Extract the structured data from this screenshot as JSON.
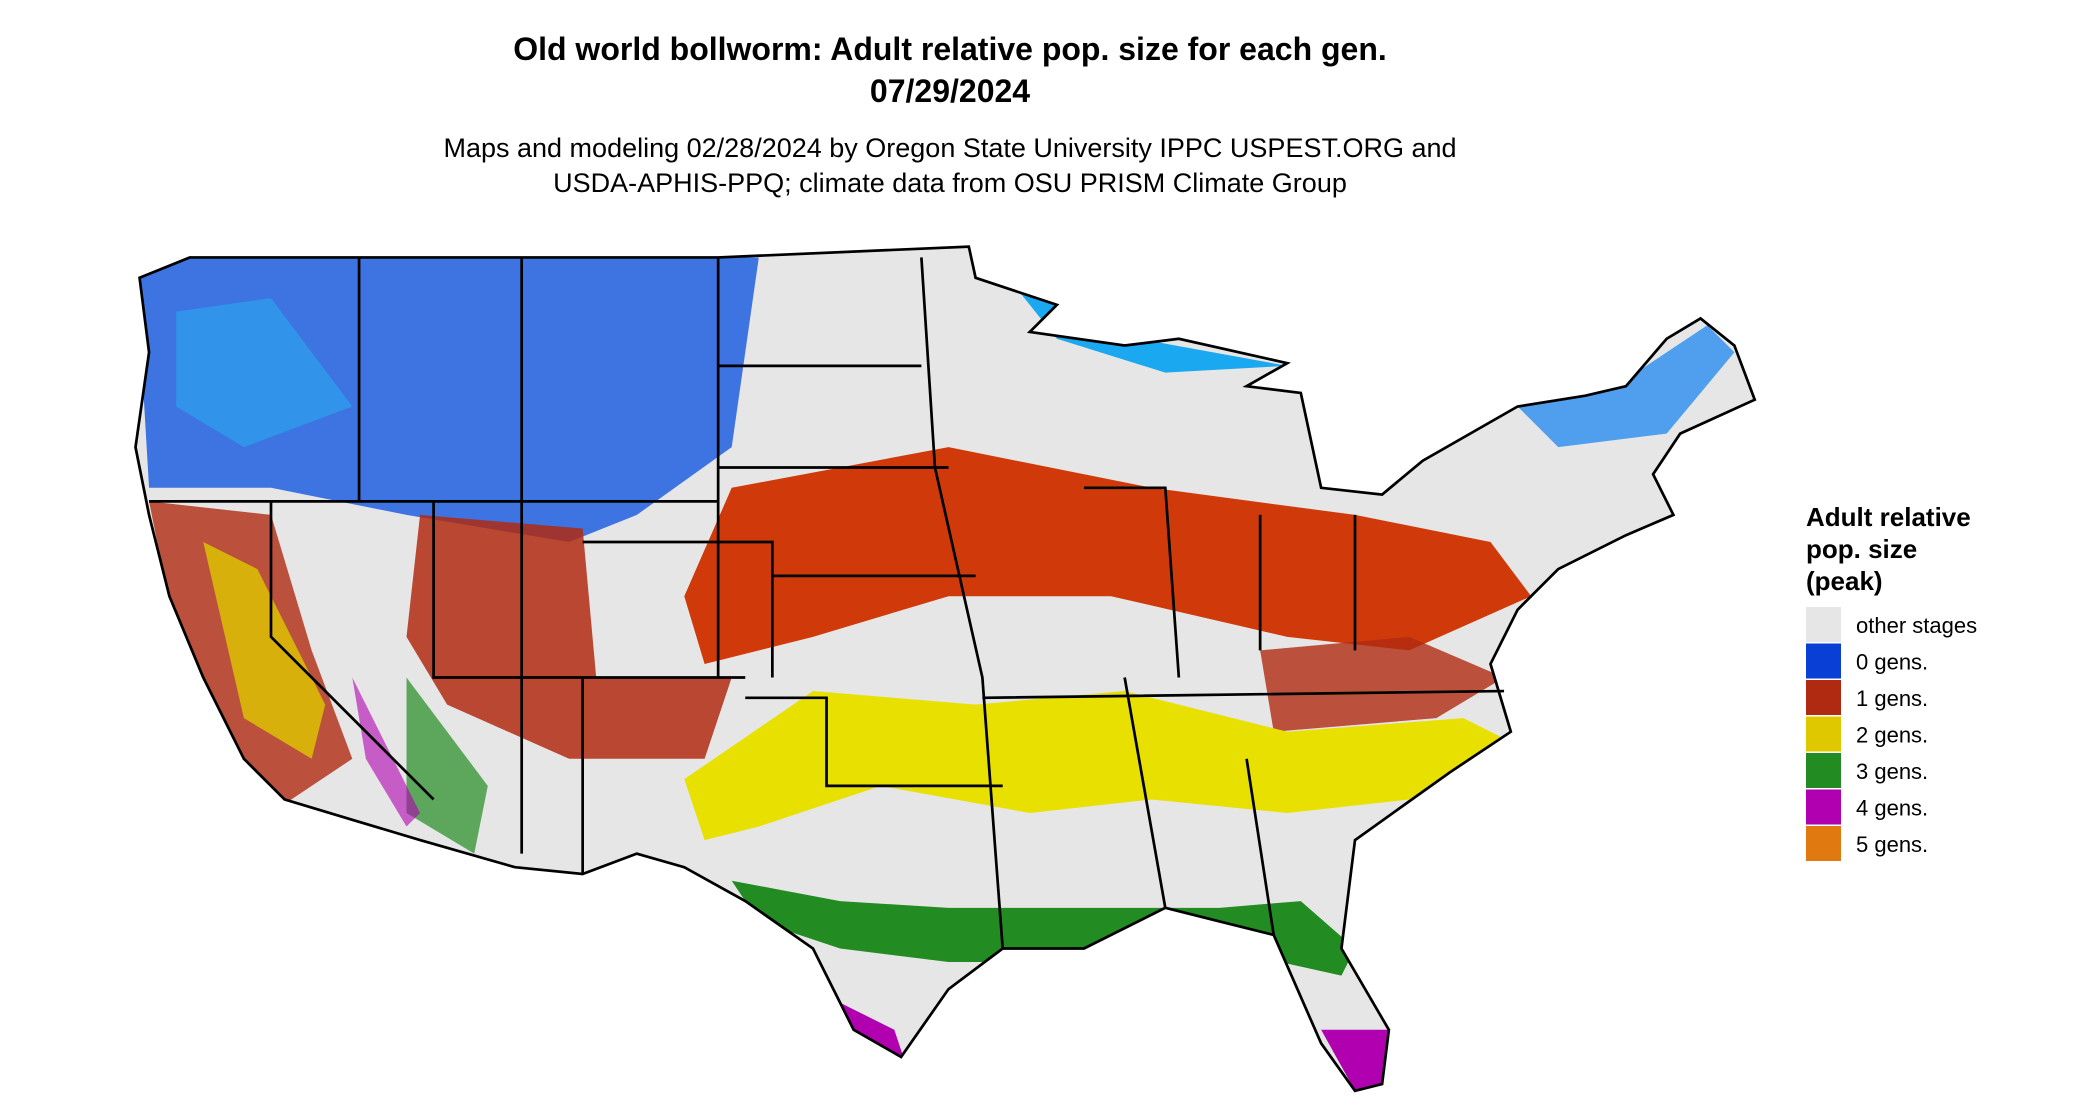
{
  "header": {
    "title": "Old world bollworm: Adult relative pop. size for each gen.",
    "date": "07/29/2024",
    "subtitle_lines": [
      "Maps and modeling 02/28/2024 by Oregon State University IPPC USPEST.ORG and",
      "USDA-APHIS-PPQ; climate data from OSU PRISM Climate Group"
    ]
  },
  "legend": {
    "title_lines": [
      "Adult relative",
      "pop. size",
      "(peak)"
    ],
    "entries": [
      {
        "label": "other stages",
        "color": "#e6e6e6"
      },
      {
        "label": "0 gens.",
        "color": "#0a3fd6"
      },
      {
        "label": "1 gens.",
        "color": "#b02a12"
      },
      {
        "label": "2 gens.",
        "color": "#e0c800"
      },
      {
        "label": "3 gens.",
        "color": "#228b22"
      },
      {
        "label": "4 gens.",
        "color": "#b000b0"
      },
      {
        "label": "5 gens.",
        "color": "#e07a10"
      }
    ]
  }
}
